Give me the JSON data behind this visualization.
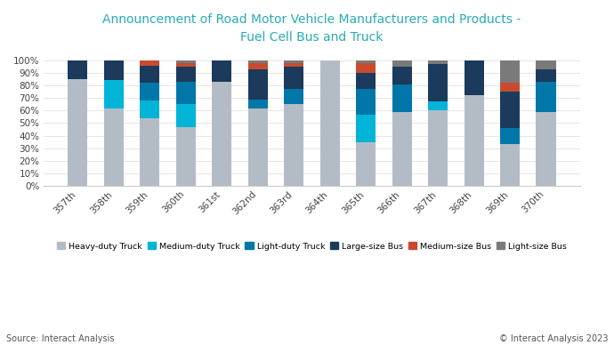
{
  "title": "Announcement of Road Motor Vehicle Manufacturers and Products -\nFuel Cell Bus and Truck",
  "title_color": "#29ABB5",
  "categories": [
    "357th",
    "358th",
    "359th",
    "360th",
    "361st",
    "362nd",
    "363rd",
    "364th",
    "365th",
    "366th",
    "367th",
    "368th",
    "369th",
    "370th"
  ],
  "series": {
    "Heavy-duty Truck": [
      85,
      62,
      54,
      47,
      83,
      62,
      65,
      100,
      35,
      59,
      60,
      72,
      33,
      59
    ],
    "Medium-duty Truck": [
      0,
      22,
      14,
      18,
      0,
      0,
      0,
      0,
      22,
      0,
      7,
      0,
      0,
      0
    ],
    "Light-duty Truck": [
      0,
      0,
      14,
      18,
      0,
      7,
      12,
      0,
      20,
      22,
      0,
      0,
      13,
      24
    ],
    "Large-size Bus": [
      15,
      16,
      14,
      12,
      17,
      24,
      18,
      0,
      13,
      14,
      30,
      28,
      29,
      10
    ],
    "Medium-size Bus": [
      0,
      0,
      4,
      3,
      0,
      5,
      3,
      0,
      8,
      0,
      0,
      0,
      7,
      0
    ],
    "Light-size Bus": [
      0,
      0,
      0,
      2,
      0,
      2,
      2,
      0,
      2,
      5,
      3,
      0,
      18,
      7
    ]
  },
  "colors": {
    "Heavy-duty Truck": "#b3bcc5",
    "Medium-duty Truck": "#00b4d8",
    "Light-duty Truck": "#0077a8",
    "Large-size Bus": "#1b3a5c",
    "Medium-size Bus": "#c84b30",
    "Light-size Bus": "#7a7a7a"
  },
  "background_color": "#ffffff",
  "source_text": "Source: Interact Analysis",
  "copyright_text": "© Interact Analysis 2023"
}
